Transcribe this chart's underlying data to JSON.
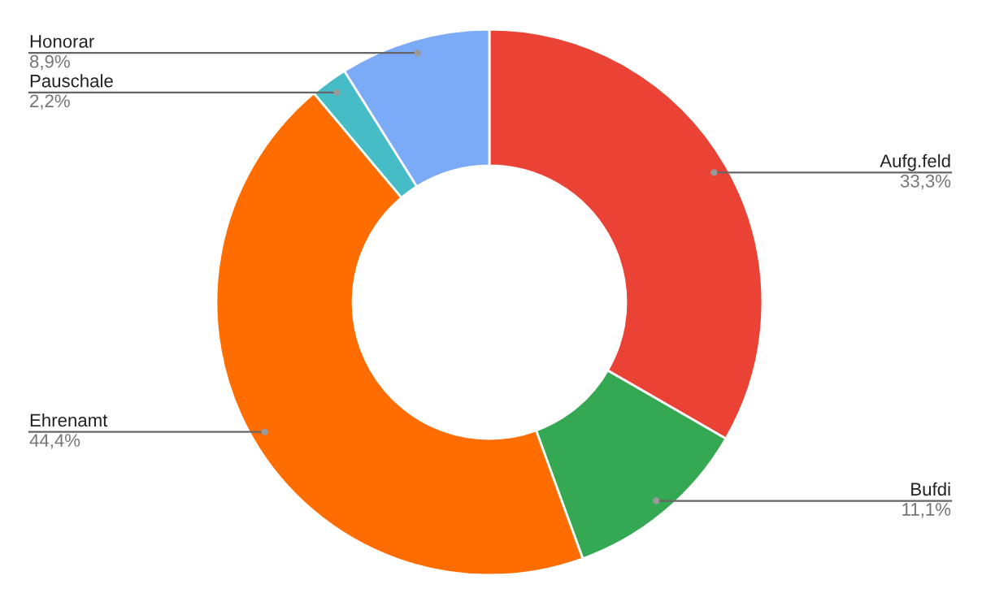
{
  "chart_data": {
    "type": "donut",
    "categories": [
      "Aufg.feld",
      "Bufdi",
      "Ehrenamt",
      "Pauschale",
      "Honorar"
    ],
    "values": [
      33.3,
      11.1,
      44.4,
      2.2,
      8.9
    ],
    "value_labels": [
      "33,3%",
      "11,1%",
      "44,4%",
      "2,2%",
      "8,9%"
    ],
    "colors": [
      "#ea4335",
      "#34a853",
      "#ff6d01",
      "#46bdc6",
      "#7baaf7"
    ]
  }
}
